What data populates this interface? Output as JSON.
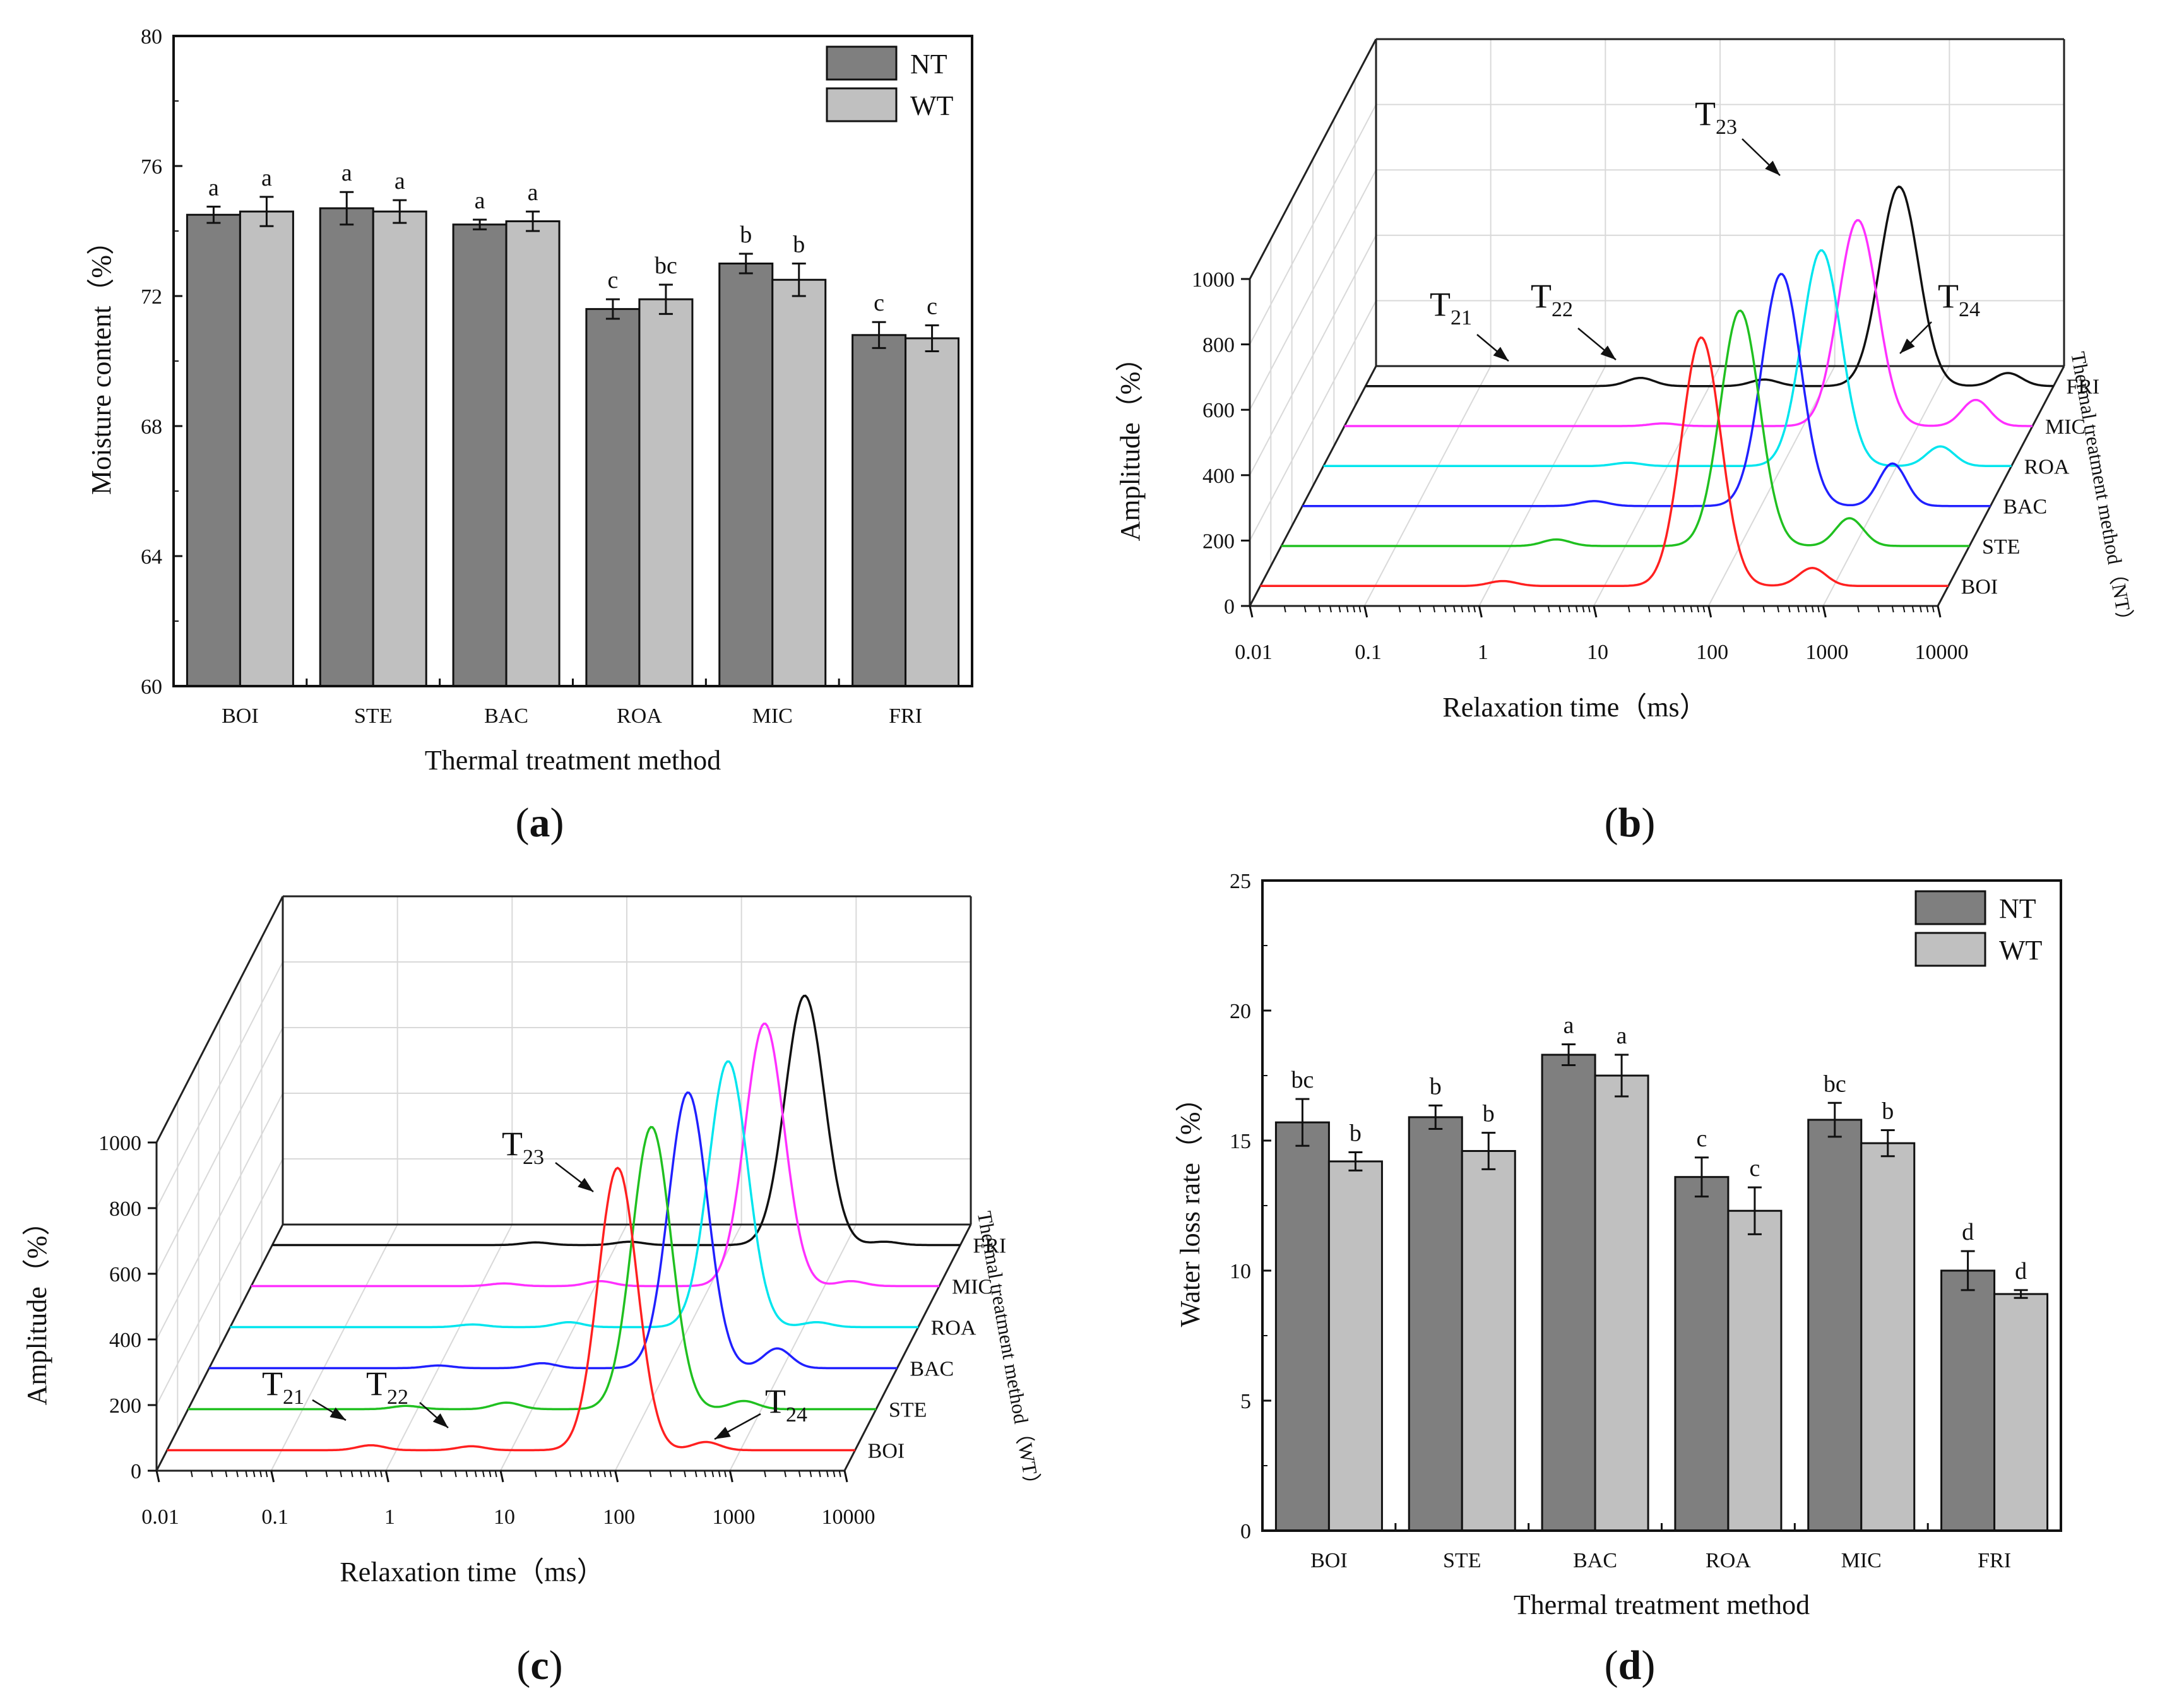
{
  "panels": {
    "a": {
      "label": "a"
    },
    "b": {
      "label": "b"
    },
    "c": {
      "label": "c"
    },
    "d": {
      "label": "d"
    }
  },
  "chart_data": [
    {
      "id": "a",
      "type": "bar",
      "categories": [
        "BOI",
        "STE",
        "BAC",
        "ROA",
        "MIC",
        "FRI"
      ],
      "series": [
        {
          "name": "NT",
          "color": "#7f7f7f",
          "values": [
            74.5,
            74.7,
            74.2,
            71.6,
            73.0,
            70.8
          ],
          "errors": [
            0.25,
            0.5,
            0.15,
            0.3,
            0.3,
            0.4
          ],
          "letters": [
            "a",
            "a",
            "a",
            "c",
            "b",
            "c"
          ]
        },
        {
          "name": "WT",
          "color": "#c0c0c0",
          "values": [
            74.6,
            74.6,
            74.3,
            71.9,
            72.5,
            70.7
          ],
          "errors": [
            0.45,
            0.35,
            0.3,
            0.45,
            0.5,
            0.4
          ],
          "letters": [
            "a",
            "a",
            "a",
            "bc",
            "b",
            "c"
          ]
        }
      ],
      "title": "",
      "xlabel": "Thermal treatment method",
      "ylabel": "Moisture content（%）",
      "ylim": [
        60,
        80
      ],
      "yticks": [
        60,
        64,
        68,
        72,
        76,
        80
      ],
      "legend": "top-right",
      "grid": false
    },
    {
      "id": "b",
      "type": "line",
      "subtype": "3d-waterfall",
      "xscale": "log",
      "xlim": [
        0.01,
        10000
      ],
      "xticks": [
        "0.01",
        "0.1",
        "1",
        "10",
        "100",
        "1000",
        "10000"
      ],
      "ylim": [
        0,
        1000
      ],
      "yticks": [
        0,
        200,
        400,
        600,
        800,
        1000
      ],
      "xlabel": "Relaxation time（ms）",
      "ylabel": "Amplitude（%）",
      "zlabel": "Thermal treatment method（NT）",
      "series": [
        {
          "name": "BOI",
          "color": "#ff2020",
          "peaks": [
            [
              1.3,
              15
            ],
            [
              70,
              760
            ],
            [
              650,
              55
            ]
          ]
        },
        {
          "name": "STE",
          "color": "#20c020",
          "peaks": [
            [
              2.5,
              20
            ],
            [
              100,
              720
            ],
            [
              900,
              85
            ]
          ]
        },
        {
          "name": "BAC",
          "color": "#2020ff",
          "peaks": [
            [
              3.5,
              15
            ],
            [
              150,
              710
            ],
            [
              1400,
              130
            ]
          ]
        },
        {
          "name": "ROA",
          "color": "#00e5ee",
          "peaks": [
            [
              4.5,
              10
            ],
            [
              220,
              660
            ],
            [
              2400,
              60
            ]
          ]
        },
        {
          "name": "MIC",
          "color": "#ff30ff",
          "peaks": [
            [
              6,
              8
            ],
            [
              300,
              630
            ],
            [
              3200,
              80
            ]
          ]
        },
        {
          "name": "FRI",
          "color": "#111111",
          "peaks": [
            [
              2.5,
              25
            ],
            [
              30,
              20
            ],
            [
              450,
              610
            ],
            [
              4000,
              40
            ]
          ]
        }
      ],
      "annotations": [
        {
          "base": "T",
          "sub": "21"
        },
        {
          "base": "T",
          "sub": "22"
        },
        {
          "base": "T",
          "sub": "23"
        },
        {
          "base": "T",
          "sub": "24"
        }
      ]
    },
    {
      "id": "c",
      "type": "line",
      "subtype": "3d-waterfall",
      "xscale": "log",
      "xlim": [
        0.01,
        10000
      ],
      "xticks": [
        "0.01",
        "0.1",
        "1",
        "10",
        "100",
        "1000",
        "10000"
      ],
      "ylim": [
        0,
        1000
      ],
      "yticks": [
        0,
        200,
        400,
        600,
        800,
        1000
      ],
      "xlabel": "Relaxation time（ms）",
      "ylabel": "Amplitude（%）",
      "zlabel": "Thermal treatment method（WT）",
      "series": [
        {
          "name": "BOI",
          "color": "#ff2020",
          "peaks": [
            [
              0.6,
              15
            ],
            [
              4.5,
              12
            ],
            [
              85,
              860
            ],
            [
              500,
              25
            ]
          ]
        },
        {
          "name": "STE",
          "color": "#20c020",
          "peaks": [
            [
              0.8,
              10
            ],
            [
              6,
              20
            ],
            [
              110,
              860
            ],
            [
              700,
              25
            ]
          ]
        },
        {
          "name": "BAC",
          "color": "#2020ff",
          "peaks": [
            [
              1,
              8
            ],
            [
              8,
              15
            ],
            [
              150,
              840
            ],
            [
              900,
              60
            ]
          ]
        },
        {
          "name": "ROA",
          "color": "#00e5ee",
          "peaks": [
            [
              1.3,
              8
            ],
            [
              9,
              15
            ],
            [
              220,
              810
            ],
            [
              1300,
              15
            ]
          ]
        },
        {
          "name": "MIC",
          "color": "#ff30ff",
          "peaks": [
            [
              1.6,
              8
            ],
            [
              11,
              15
            ],
            [
              300,
              800
            ],
            [
              1700,
              15
            ]
          ]
        },
        {
          "name": "FRI",
          "color": "#111111",
          "peaks": [
            [
              2,
              8
            ],
            [
              13,
              10
            ],
            [
              440,
              760
            ],
            [
              2200,
              10
            ]
          ]
        }
      ],
      "annotations": [
        {
          "base": "T",
          "sub": "21"
        },
        {
          "base": "T",
          "sub": "22"
        },
        {
          "base": "T",
          "sub": "23"
        },
        {
          "base": "T",
          "sub": "24"
        }
      ]
    },
    {
      "id": "d",
      "type": "bar",
      "categories": [
        "BOI",
        "STE",
        "BAC",
        "ROA",
        "MIC",
        "FRI"
      ],
      "series": [
        {
          "name": "NT",
          "color": "#7f7f7f",
          "values": [
            15.7,
            15.9,
            18.3,
            13.6,
            15.8,
            10.0
          ],
          "errors": [
            0.9,
            0.45,
            0.4,
            0.75,
            0.65,
            0.75
          ],
          "letters": [
            "bc",
            "b",
            "a",
            "c",
            "bc",
            "d"
          ]
        },
        {
          "name": "WT",
          "color": "#c0c0c0",
          "values": [
            14.2,
            14.6,
            17.5,
            12.3,
            14.9,
            9.1
          ],
          "errors": [
            0.35,
            0.7,
            0.8,
            0.9,
            0.5,
            0.15
          ],
          "letters": [
            "b",
            "b",
            "a",
            "c",
            "b",
            "d"
          ]
        }
      ],
      "title": "",
      "xlabel": "Thermal treatment method",
      "ylabel": "Water loss rate（%）",
      "ylim": [
        0,
        25
      ],
      "yticks": [
        0,
        5,
        10,
        15,
        20,
        25
      ],
      "legend": "top-right",
      "grid": false
    }
  ]
}
